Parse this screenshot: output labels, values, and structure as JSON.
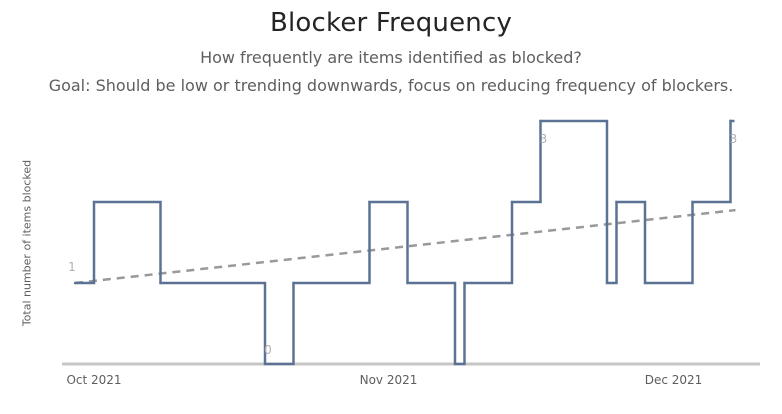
{
  "chart_data": {
    "type": "line",
    "title": "Blocker Frequency",
    "subtitle_lines": [
      "How frequently are items identified as blocked?",
      "Goal: Should be low or trending downwards, focus on reducing frequency of blockers."
    ],
    "ylabel": "Total number of items blocked",
    "xlabel": "",
    "x_tick_labels": [
      "Oct 2021",
      "Nov 2021",
      "Dec 2021"
    ],
    "x_tick_dates": [
      "2021-10-01",
      "2021-11-01",
      "2021-12-01"
    ],
    "ylim": [
      0,
      3
    ],
    "grid": false,
    "legend": "none",
    "step": true,
    "series": [
      {
        "color": "#5b7295",
        "points": [
          {
            "x": "2021-10-01",
            "y": 1
          },
          {
            "x": "2021-10-03",
            "y": 2
          },
          {
            "x": "2021-10-10",
            "y": 1
          },
          {
            "x": "2021-10-21",
            "y": 0
          },
          {
            "x": "2021-10-24",
            "y": 1
          },
          {
            "x": "2021-11-01",
            "y": 2
          },
          {
            "x": "2021-11-05",
            "y": 1
          },
          {
            "x": "2021-11-10",
            "y": 0
          },
          {
            "x": "2021-11-11",
            "y": 1
          },
          {
            "x": "2021-11-16",
            "y": 2
          },
          {
            "x": "2021-11-19",
            "y": 3
          },
          {
            "x": "2021-11-26",
            "y": 1
          },
          {
            "x": "2021-11-27",
            "y": 2
          },
          {
            "x": "2021-11-30",
            "y": 1
          },
          {
            "x": "2021-12-05",
            "y": 2
          },
          {
            "x": "2021-12-09",
            "y": 3
          },
          {
            "x": "2021-12-09",
            "y": 3
          }
        ]
      }
    ],
    "trendline": {
      "color": "#999999",
      "style": "dashed",
      "start": {
        "x": "2021-10-01",
        "y": 1
      },
      "end": {
        "x": "2021-12-09",
        "y": 1.9
      }
    },
    "data_labels": [
      {
        "x": "2021-10-01",
        "y": 1,
        "text": "1"
      },
      {
        "x": "2021-10-21",
        "y": 0,
        "text": "0"
      },
      {
        "x": "2021-11-19",
        "y": 3,
        "text": "3"
      },
      {
        "x": "2021-12-09",
        "y": 3,
        "text": "3"
      }
    ]
  }
}
